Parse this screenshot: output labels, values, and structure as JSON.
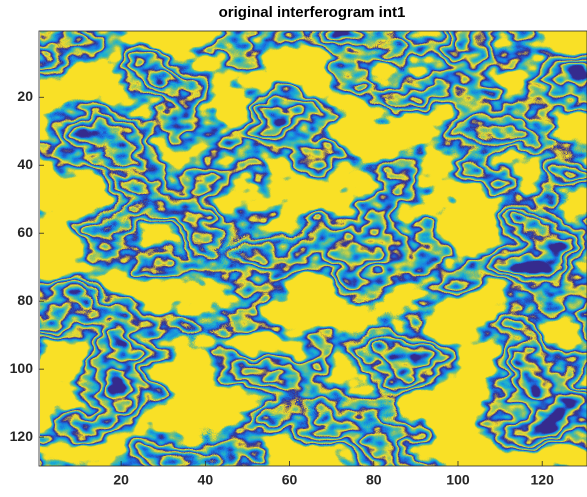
{
  "chart_data": {
    "type": "image",
    "title": "original interferogram int1",
    "xlim": [
      0.5,
      128.5
    ],
    "ylim": [
      0.5,
      128.5
    ],
    "xticks": [
      20,
      40,
      60,
      80,
      100,
      120
    ],
    "yticks": [
      20,
      40,
      60,
      80,
      100,
      120
    ],
    "y_reversed": true
  }
}
